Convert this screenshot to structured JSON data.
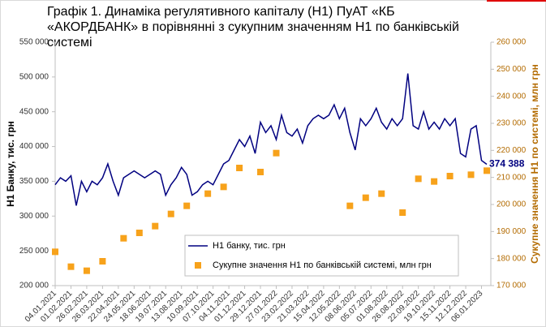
{
  "chart_data": {
    "type": "line",
    "title": "Графік 1. Динаміка регулятивного капіталу (Н1) ПуАТ «КБ «АКОРДБАНК» в порівнянні з сукупним значенням Н1 по банківській системі",
    "ylabel": "Н1 Банку, тис. грн",
    "y2label": "Сукупне значення Н1 по системі, млн грн",
    "categories": [
      "04.01.2021",
      null,
      null,
      "01.02.2021",
      null,
      null,
      "26.02.2021",
      null,
      null,
      "26.03.2021",
      null,
      null,
      "22.04.2021",
      null,
      null,
      "24.05.2021",
      null,
      null,
      "18.06.2021",
      null,
      null,
      "19.07.2021",
      null,
      null,
      "13.08.2021",
      null,
      null,
      "10.09.2021",
      null,
      null,
      "07.10.2021",
      null,
      null,
      "04.11.2021",
      null,
      null,
      "01.12.2021",
      null,
      null,
      "29.12.2021",
      null,
      null,
      "27.01.2022",
      null,
      null,
      "23.02.2022",
      null,
      null,
      "21.03.2022",
      null,
      null,
      "15.04.2022",
      null,
      null,
      "12.05.2022",
      null,
      null,
      "08.06.2022",
      null,
      null,
      "05.07.2022",
      null,
      null,
      "01.08.2022",
      null,
      null,
      "26.08.2022",
      null,
      null,
      "22.09.2022",
      null,
      null,
      "19.10.2022",
      null,
      null,
      "15.11.2022",
      null,
      null,
      "12.12.2022",
      null,
      null,
      "06.01.2023",
      null
    ],
    "series": [
      {
        "name": "Н1 банку, тис. грн",
        "color": "#000080",
        "style": "line",
        "values": [
          345000,
          355000,
          350000,
          358000,
          315000,
          350000,
          335000,
          350000,
          345000,
          355000,
          375000,
          350000,
          330000,
          355000,
          360000,
          365000,
          360000,
          355000,
          360000,
          365000,
          360000,
          330000,
          345000,
          355000,
          370000,
          360000,
          330000,
          335000,
          345000,
          350000,
          345000,
          360000,
          375000,
          380000,
          395000,
          410000,
          400000,
          415000,
          390000,
          435000,
          420000,
          430000,
          410000,
          445000,
          420000,
          415000,
          425000,
          405000,
          430000,
          440000,
          445000,
          440000,
          445000,
          460000,
          440000,
          455000,
          420000,
          395000,
          440000,
          430000,
          440000,
          455000,
          435000,
          425000,
          440000,
          430000,
          440000,
          505000,
          430000,
          425000,
          450000,
          425000,
          435000,
          425000,
          440000,
          430000,
          440000,
          390000,
          385000,
          425000,
          430000,
          380000,
          374388
        ],
        "value_labels": [
          null,
          null,
          null,
          null,
          null,
          null,
          null,
          null,
          null,
          null,
          null,
          null,
          null,
          null,
          null,
          null,
          null,
          null,
          null,
          null,
          null,
          null,
          null,
          null,
          null,
          null,
          null,
          null,
          null,
          null,
          null,
          null,
          null,
          null,
          null,
          null,
          null,
          null,
          null,
          null,
          null,
          null,
          null,
          null,
          null,
          null,
          null,
          null,
          null,
          null,
          null,
          null,
          null,
          null,
          null,
          null,
          null,
          null,
          null,
          null,
          null,
          null,
          null,
          null,
          null,
          null,
          null,
          null,
          null,
          null,
          null,
          null,
          null,
          null,
          null,
          null,
          null,
          null,
          null,
          null,
          null,
          null,
          "374 388"
        ]
      },
      {
        "name": "Сукупне значення Н1 по банківській системі, млн грн",
        "color": "#f7a21b",
        "style": "marker",
        "axis": "y2",
        "values": [
          182500,
          null,
          null,
          177000,
          null,
          null,
          175500,
          null,
          null,
          179000,
          null,
          null,
          null,
          187500,
          null,
          null,
          189500,
          null,
          null,
          192000,
          null,
          null,
          196500,
          null,
          null,
          199500,
          null,
          null,
          null,
          204000,
          null,
          null,
          206500,
          null,
          null,
          213500,
          null,
          null,
          null,
          212000,
          null,
          null,
          219000,
          null,
          null,
          null,
          null,
          null,
          null,
          null,
          null,
          null,
          null,
          null,
          null,
          null,
          199500,
          null,
          null,
          202500,
          null,
          null,
          204000,
          null,
          null,
          null,
          197000,
          null,
          null,
          209500,
          null,
          null,
          208500,
          null,
          null,
          210500,
          null,
          null,
          null,
          211000,
          null,
          null,
          212500
        ]
      }
    ],
    "ylim": [
      200000,
      550000
    ],
    "yticks": [
      {
        "value": 200000,
        "label": "200 000"
      },
      {
        "value": 250000,
        "label": "250 000"
      },
      {
        "value": 300000,
        "label": "300 000"
      },
      {
        "value": 350000,
        "label": "350 000"
      },
      {
        "value": 400000,
        "label": "400 000"
      },
      {
        "value": 450000,
        "label": "450 000"
      },
      {
        "value": 500000,
        "label": "500 000"
      },
      {
        "value": 550000,
        "label": "550 000"
      }
    ],
    "y2lim": [
      170000,
      260000
    ],
    "y2ticks": [
      {
        "value": 170000,
        "label": "170 000"
      },
      {
        "value": 180000,
        "label": "180 000"
      },
      {
        "value": 190000,
        "label": "190 000"
      },
      {
        "value": 200000,
        "label": "200 000"
      },
      {
        "value": 210000,
        "label": "210 000"
      },
      {
        "value": 220000,
        "label": "220 000"
      },
      {
        "value": 230000,
        "label": "230 000"
      },
      {
        "value": 240000,
        "label": "240 000"
      },
      {
        "value": 250000,
        "label": "250 000"
      },
      {
        "value": 260000,
        "label": "260 000"
      }
    ],
    "y2color": "#b36b00",
    "grid": false
  }
}
